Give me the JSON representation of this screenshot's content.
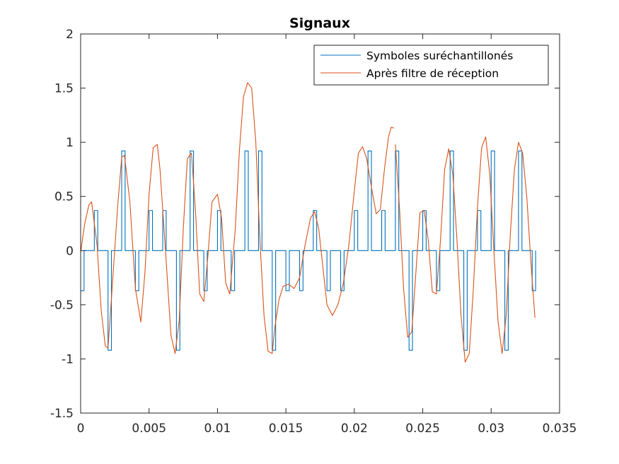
{
  "chart_data": {
    "type": "line",
    "title": "Signaux",
    "xlabel": "",
    "ylabel": "",
    "xlim": [
      0,
      0.035
    ],
    "ylim": [
      -1.5,
      2
    ],
    "x_ticks": [
      "0",
      "0.005",
      "0.01",
      "0.015",
      "0.02",
      "0.025",
      "0.03",
      "0.035"
    ],
    "y_ticks": [
      "-1.5",
      "-1",
      "-0.5",
      "0",
      "0.5",
      "1",
      "1.5",
      "2"
    ],
    "grid": false,
    "legend_position": "top-right",
    "series": [
      {
        "name": "Symboles suréchantillonés",
        "color": "#0072BD",
        "style": "impulses",
        "pulse_width": 0.00025,
        "x": [
          0.0,
          0.001,
          0.002,
          0.003,
          0.004,
          0.005,
          0.006,
          0.007,
          0.008,
          0.009,
          0.01,
          0.011,
          0.012,
          0.013,
          0.014,
          0.015,
          0.016,
          0.017,
          0.018,
          0.019,
          0.02,
          0.021,
          0.022,
          0.023,
          0.024,
          0.025,
          0.026,
          0.027,
          0.028,
          0.029,
          0.03,
          0.031,
          0.032,
          0.033
        ],
        "values": [
          -0.37,
          0.37,
          -0.92,
          0.92,
          -0.37,
          0.37,
          0.37,
          -0.92,
          0.92,
          -0.37,
          0.37,
          -0.37,
          0.92,
          0.92,
          -0.92,
          -0.37,
          -0.37,
          0.37,
          -0.37,
          -0.37,
          0.37,
          0.92,
          0.37,
          0.92,
          -0.92,
          0.37,
          -0.37,
          0.92,
          -0.92,
          0.37,
          0.92,
          -0.92,
          0.92,
          -0.37
        ]
      },
      {
        "name": "Après filtre de réception",
        "color": "#D95319",
        "style": "line",
        "x": [
          0.0,
          0.0003,
          0.0006,
          0.0008,
          0.0012,
          0.0015,
          0.0018,
          0.002,
          0.0023,
          0.0027,
          0.003,
          0.0032,
          0.0036,
          0.004,
          0.0044,
          0.0047,
          0.005,
          0.0053,
          0.0056,
          0.0058,
          0.0062,
          0.0066,
          0.0069,
          0.0072,
          0.0075,
          0.0078,
          0.0081,
          0.0084,
          0.0087,
          0.009,
          0.0093,
          0.0096,
          0.01,
          0.0103,
          0.0106,
          0.0109,
          0.0113,
          0.0116,
          0.0119,
          0.0122,
          0.0125,
          0.0128,
          0.0131,
          0.0134,
          0.0137,
          0.014,
          0.0142,
          0.0145,
          0.0148,
          0.0152,
          0.0156,
          0.016,
          0.0164,
          0.0168,
          0.0171,
          0.0174,
          0.0177,
          0.018,
          0.0184,
          0.0188,
          0.0192,
          0.0196,
          0.02,
          0.0203,
          0.0206,
          0.0209,
          0.0213,
          0.0216,
          0.0219,
          0.0222,
          0.0225,
          0.0227,
          0.0229
        ],
        "values": [
          -0.02,
          0.25,
          0.42,
          0.45,
          0.05,
          -0.55,
          -0.88,
          -0.9,
          -0.35,
          0.4,
          0.86,
          0.88,
          0.45,
          -0.35,
          -0.66,
          -0.2,
          0.52,
          0.95,
          0.98,
          0.75,
          0.0,
          -0.78,
          -0.95,
          -0.65,
          0.2,
          0.85,
          0.9,
          0.35,
          -0.4,
          -0.47,
          -0.05,
          0.45,
          0.52,
          0.3,
          -0.3,
          -0.4,
          0.2,
          0.92,
          1.42,
          1.55,
          1.5,
          1.0,
          0.1,
          -0.6,
          -0.93,
          -0.95,
          -0.7,
          -0.45,
          -0.33,
          -0.31,
          -0.35,
          -0.25,
          0.05,
          0.3,
          0.36,
          0.2,
          -0.15,
          -0.5,
          -0.6,
          -0.5,
          -0.3,
          0.05,
          0.55,
          0.9,
          0.96,
          0.85,
          0.55,
          0.34,
          0.38,
          0.75,
          1.05,
          1.14,
          1.13
        ]
      },
      {
        "name": "",
        "color": "#D95319",
        "style": "line",
        "x": [
          0.023,
          0.0233,
          0.0236,
          0.0239,
          0.0242,
          0.0245,
          0.0248,
          0.0251,
          0.0254,
          0.0257,
          0.026,
          0.0263,
          0.0266,
          0.0269,
          0.0272,
          0.0275,
          0.0278,
          0.0281,
          0.0284,
          0.0287,
          0.029,
          0.0293,
          0.0296,
          0.0299,
          0.0302,
          0.0305,
          0.0308,
          0.0311,
          0.0314,
          0.0317,
          0.032,
          0.0323,
          0.0326,
          0.0329,
          0.0332
        ],
        "values": [
          0.98,
          0.4,
          -0.35,
          -0.8,
          -0.75,
          -0.2,
          0.35,
          0.37,
          0.1,
          -0.38,
          -0.4,
          0.1,
          0.75,
          0.94,
          0.7,
          0.1,
          -0.6,
          -1.03,
          -0.95,
          -0.35,
          0.4,
          0.95,
          1.05,
          0.7,
          0.0,
          -0.65,
          -0.95,
          -0.6,
          0.15,
          0.75,
          1.0,
          0.9,
          0.5,
          -0.1,
          -0.62
        ]
      }
    ]
  }
}
